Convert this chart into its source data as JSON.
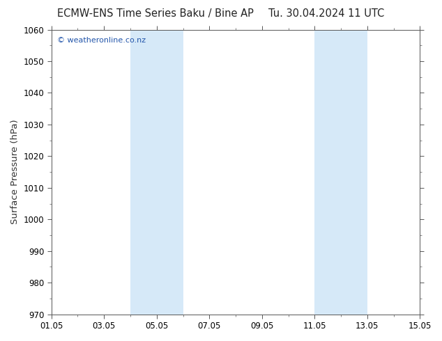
{
  "title_left": "ECMW-ENS Time Series Baku / Bine AP",
  "title_right": "Tu. 30.04.2024 11 UTC",
  "ylabel": "Surface Pressure (hPa)",
  "ylim": [
    970,
    1060
  ],
  "yticks": [
    970,
    980,
    990,
    1000,
    1010,
    1020,
    1030,
    1040,
    1050,
    1060
  ],
  "xlim": [
    0,
    14
  ],
  "xtick_labels": [
    "01.05",
    "03.05",
    "05.05",
    "07.05",
    "09.05",
    "11.05",
    "13.05",
    "15.05"
  ],
  "xtick_positions": [
    0,
    2,
    4,
    6,
    8,
    10,
    12,
    14
  ],
  "shade_bands": [
    {
      "x_start": 3,
      "x_end": 4,
      "color": "#d6e9f8"
    },
    {
      "x_start": 4,
      "x_end": 5,
      "color": "#d6e9f8"
    },
    {
      "x_start": 10,
      "x_end": 11,
      "color": "#d6e9f8"
    },
    {
      "x_start": 11,
      "x_end": 12,
      "color": "#d6e9f8"
    }
  ],
  "watermark_text": "© weatheronline.co.nz",
  "watermark_color": "#2255aa",
  "background_color": "#ffffff",
  "plot_bg_color": "#ffffff",
  "title_fontsize": 10.5,
  "label_fontsize": 9.5,
  "tick_fontsize": 8.5,
  "spine_color": "#555555",
  "tick_color": "#555555"
}
